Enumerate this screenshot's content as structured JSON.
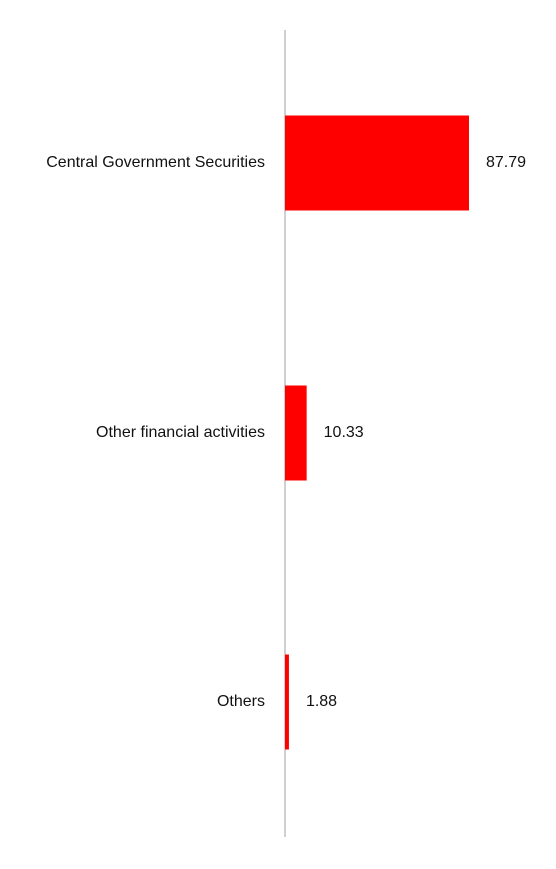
{
  "chart_data": {
    "type": "bar",
    "orientation": "horizontal",
    "categories": [
      "Central Government Securities",
      "Other financial activities",
      "Others"
    ],
    "values": [
      87.79,
      10.33,
      1.88
    ],
    "value_labels": [
      "87.79",
      "10.33",
      "1.88"
    ],
    "title": "",
    "xlabel": "",
    "ylabel": "",
    "xlim": [
      0,
      100
    ],
    "grid": false,
    "legend": "none",
    "bar_color": "#ff0000",
    "axis_color": "#d0d0d0"
  }
}
